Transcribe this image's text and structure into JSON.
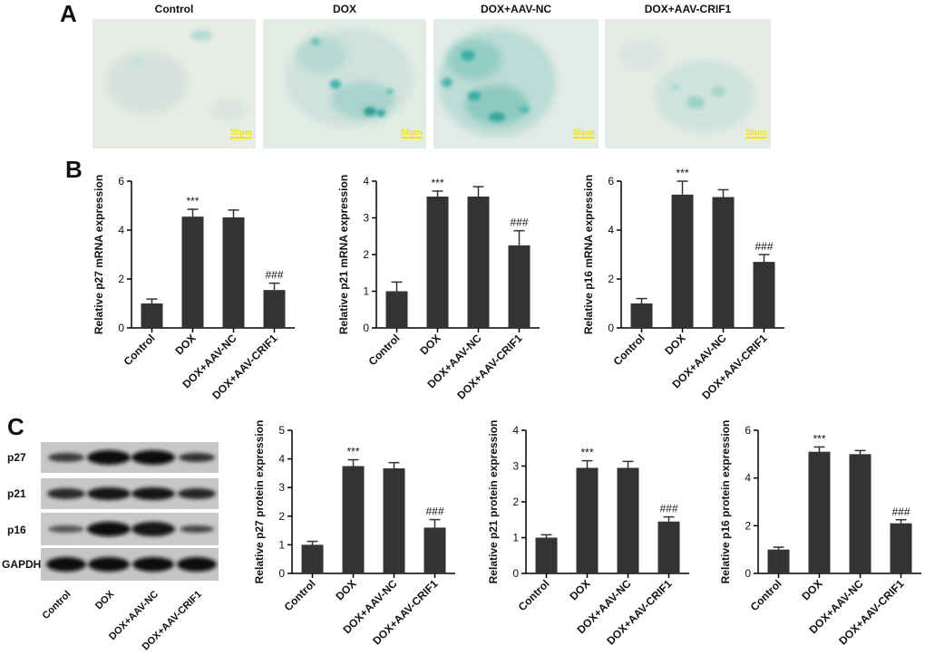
{
  "panel_labels": {
    "a": "A",
    "b": "B",
    "c": "C"
  },
  "groups": [
    "Control",
    "DOX",
    "DOX+AAV-NC",
    "DOX+AAV-CRIF1"
  ],
  "scale_bar_label": "50μm",
  "western_blot": {
    "bands": [
      "p27",
      "p21",
      "p16",
      "GAPDH"
    ]
  },
  "colors": {
    "bar": "#333333",
    "stain": "#2aa9a1",
    "scale_bar": "#f2e600"
  },
  "chart_data": [
    {
      "type": "bar",
      "ylabel": "Relative p27 mRNA expression",
      "categories": [
        "Control",
        "DOX",
        "DOX+AAV-NC",
        "DOX+AAV-CRIF1"
      ],
      "values": [
        1.0,
        4.55,
        4.52,
        1.55
      ],
      "errors": [
        0.18,
        0.3,
        0.3,
        0.28
      ],
      "annotations": [
        "",
        "***",
        "",
        "###"
      ],
      "ylim": [
        0,
        6
      ],
      "yticks": [
        0,
        2,
        4,
        6
      ]
    },
    {
      "type": "bar",
      "ylabel": "Relative p21 mRNA expression",
      "categories": [
        "Control",
        "DOX",
        "DOX+AAV-NC",
        "DOX+AAV-CRIF1"
      ],
      "values": [
        1.0,
        3.58,
        3.58,
        2.25
      ],
      "errors": [
        0.25,
        0.15,
        0.27,
        0.4
      ],
      "annotations": [
        "",
        "***",
        "",
        "###"
      ],
      "ylim": [
        0,
        4
      ],
      "yticks": [
        0,
        1,
        2,
        3,
        4
      ]
    },
    {
      "type": "bar",
      "ylabel": "Relative p16 mRNA expression",
      "categories": [
        "Control",
        "DOX",
        "DOX+AAV-NC",
        "DOX+AAV-CRIF1"
      ],
      "values": [
        1.0,
        5.45,
        5.35,
        2.7
      ],
      "errors": [
        0.2,
        0.55,
        0.3,
        0.3
      ],
      "annotations": [
        "",
        "***",
        "",
        "###"
      ],
      "ylim": [
        0,
        6
      ],
      "yticks": [
        0,
        2,
        4,
        6
      ]
    },
    {
      "type": "bar",
      "ylabel": "Relative p27 protein expression",
      "categories": [
        "Control",
        "DOX",
        "DOX+AAV-NC",
        "DOX+AAV-CRIF1"
      ],
      "values": [
        1.0,
        3.75,
        3.67,
        1.6
      ],
      "errors": [
        0.12,
        0.22,
        0.2,
        0.28
      ],
      "annotations": [
        "",
        "***",
        "",
        "###"
      ],
      "ylim": [
        0,
        5
      ],
      "yticks": [
        0,
        1,
        2,
        3,
        4,
        5
      ]
    },
    {
      "type": "bar",
      "ylabel": "Relative p21 protein expression",
      "categories": [
        "Control",
        "DOX",
        "DOX+AAV-NC",
        "DOX+AAV-CRIF1"
      ],
      "values": [
        1.0,
        2.95,
        2.95,
        1.45
      ],
      "errors": [
        0.08,
        0.2,
        0.18,
        0.13
      ],
      "annotations": [
        "",
        "***",
        "",
        "###"
      ],
      "ylim": [
        0,
        4
      ],
      "yticks": [
        0,
        1,
        2,
        3,
        4
      ]
    },
    {
      "type": "bar",
      "ylabel": "Relative p16 protein expression",
      "categories": [
        "Control",
        "DOX",
        "DOX+AAV-NC",
        "DOX+AAV-CRIF1"
      ],
      "values": [
        1.0,
        5.1,
        5.0,
        2.1
      ],
      "errors": [
        0.1,
        0.2,
        0.15,
        0.15
      ],
      "annotations": [
        "",
        "***",
        "",
        "###"
      ],
      "ylim": [
        0,
        6
      ],
      "yticks": [
        0,
        2,
        4,
        6
      ]
    }
  ]
}
